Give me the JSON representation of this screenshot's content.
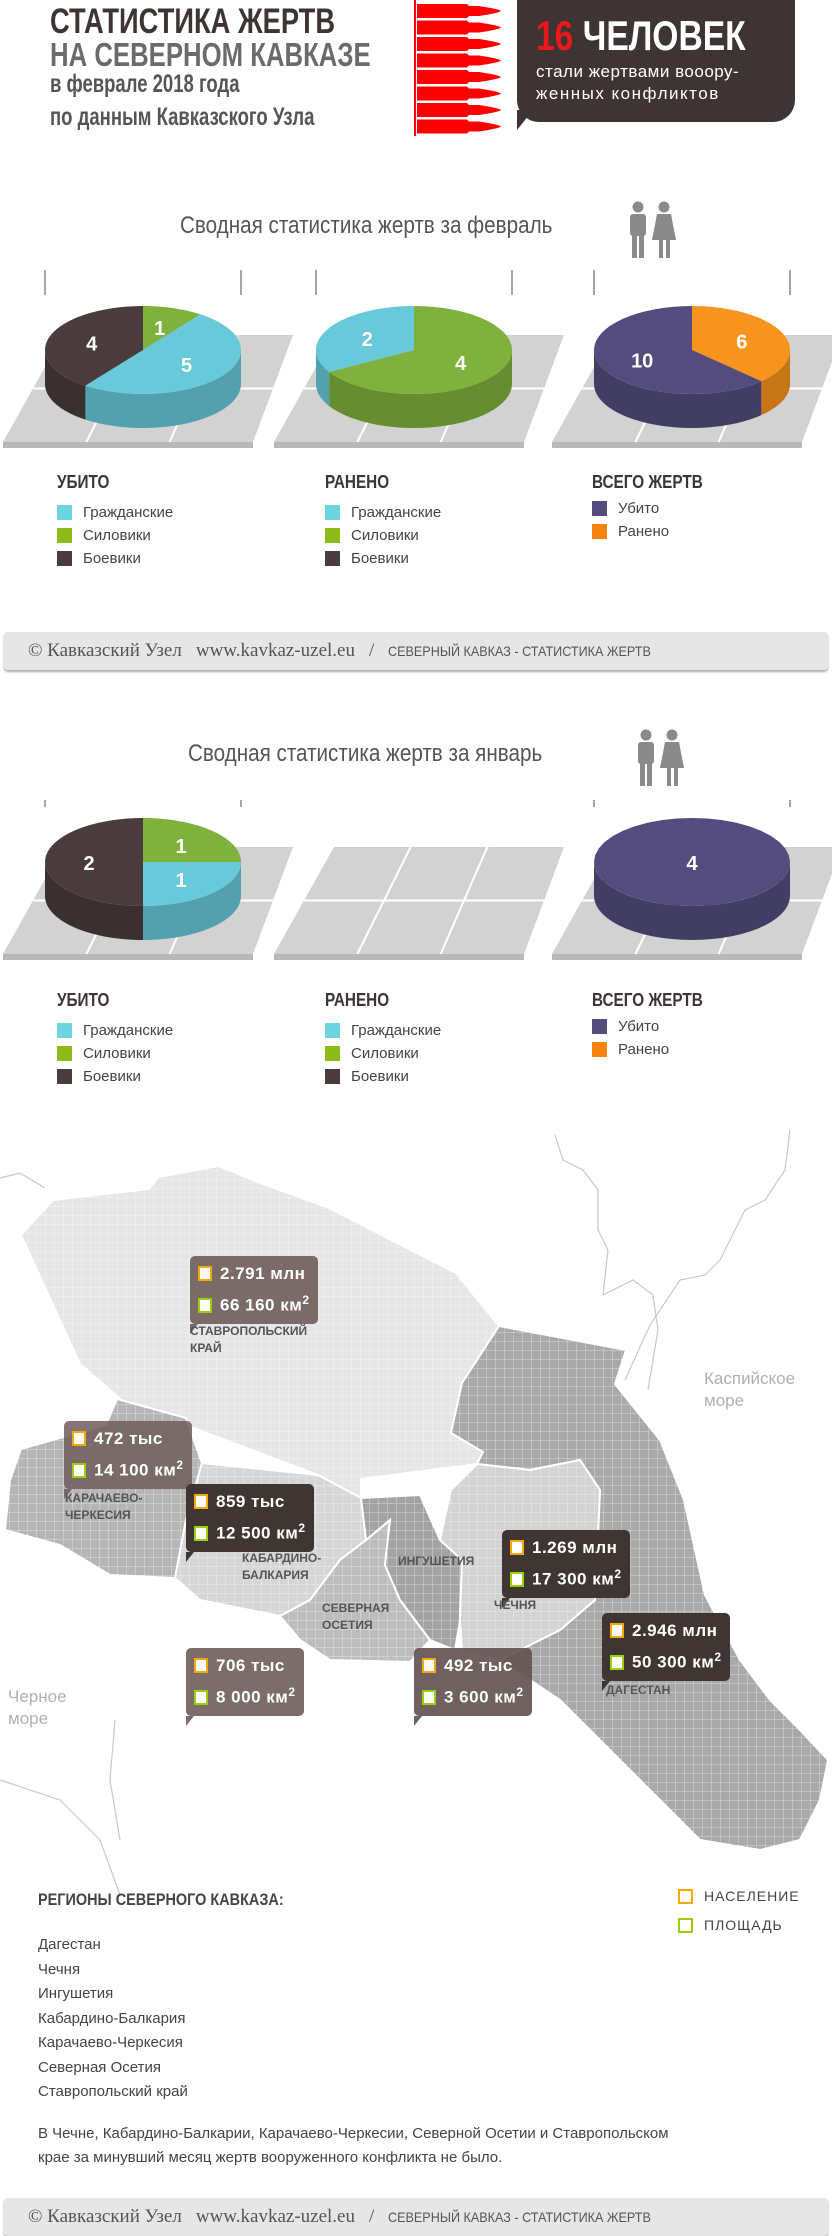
{
  "header": {
    "title_line1": "СТАТИСТИКА ЖЕРТВ",
    "title_line2": "НА СЕВЕРНОМ КАВКАЗЕ",
    "title_line3": "в феврале 2018 года",
    "title_line4": "по данным Кавказского Узла",
    "total_number": "16",
    "total_word": "ЧЕЛОВЕК",
    "total_sub1": "стали жертвами вооору-",
    "total_sub2": "женных  конфликтов",
    "bullet_color": "#ff0000"
  },
  "february": {
    "title": "Сводная статистика жертв за февраль"
  },
  "january": {
    "title": "Сводная статистика жертв за январь"
  },
  "legends": {
    "killed": "УБИТО",
    "wounded": "РАНЕНО",
    "total": "ВСЕГО ЖЕРТВ",
    "civilians": "Гражданские",
    "security": "Силовики",
    "militants": "Боевики",
    "killed_item": "Убито",
    "wounded_item": "Ранено"
  },
  "colors": {
    "civilians": "#68c9da",
    "security": "#7fb13c",
    "militants": "#4a3c3c",
    "killed": "#534c7c",
    "wounded": "#f7941d"
  },
  "chart_data": [
    {
      "type": "pie",
      "month": "февраль",
      "title": "УБИТО",
      "total": "10",
      "categories": [
        "Силовики",
        "Гражданские",
        "Боевики"
      ],
      "values": [
        1,
        5,
        4
      ]
    },
    {
      "type": "pie",
      "month": "февраль",
      "title": "РАНЕНО",
      "total": "6",
      "categories": [
        "Силовики",
        "Гражданские"
      ],
      "values": [
        4,
        2
      ]
    },
    {
      "type": "pie",
      "month": "февраль",
      "title": "ВСЕГО ЖЕРТВ",
      "total": "16",
      "categories": [
        "Ранено",
        "Убито"
      ],
      "values": [
        6,
        10
      ]
    },
    {
      "type": "pie",
      "month": "январь",
      "title": "УБИТО",
      "total": "4",
      "categories": [
        "Силовики",
        "Гражданские",
        "Боевики"
      ],
      "values": [
        1,
        1,
        2
      ]
    },
    {
      "type": "pie",
      "month": "январь",
      "title": "РАНЕНО",
      "total": "",
      "categories": [],
      "values": []
    },
    {
      "type": "pie",
      "month": "январь",
      "title": "ВСЕГО ЖЕРТВ",
      "total": "4",
      "categories": [
        "Убито"
      ],
      "values": [
        4
      ]
    }
  ],
  "footer": {
    "copyright": "© Кавказский Узел",
    "url": "www.kavkaz-uzel.eu",
    "slash": "/",
    "caption": "СЕВЕРНЫЙ КАВКАЗ - СТАТИСТИКА ЖЕРТВ"
  },
  "map": {
    "caspian": "Каспийское море",
    "black_sea": "Черное море",
    "km2": "км",
    "sup": "2",
    "regions": [
      {
        "name": "СТАВРОПОЛЬСКИЙ КРАЙ",
        "population": "2.791 млн",
        "area": "66 160"
      },
      {
        "name": "КАРАЧАЕВО-ЧЕРКЕСИЯ",
        "population": "472 тыс",
        "area": "14 100"
      },
      {
        "name": "КАБАРДИНО-БАЛКАРИЯ",
        "population": "859 тыс",
        "area": "12 500"
      },
      {
        "name": "СЕВЕРНАЯ ОСЕТИЯ",
        "population": "706 тыс",
        "area": "8 000"
      },
      {
        "name": "ИНГУШЕТИЯ",
        "population": "492 тыс",
        "area": "3 600"
      },
      {
        "name": "ЧЕЧНЯ",
        "population": "1.269 млн",
        "area": "17 300"
      },
      {
        "name": "ДАГЕСТАН",
        "population": "2.946 млн",
        "area": "50 300"
      }
    ]
  },
  "regions_section": {
    "title": "РЕГИОНЫ СЕВЕРНОГО КАВКАЗА:",
    "population_label": "НАСЕЛЕНИЕ",
    "area_label": "ПЛОЩАДЬ",
    "items": [
      "Дагестан",
      "Чечня",
      "Ингушетия",
      "Кабардино-Балкария",
      "Карачаево-Черкесия",
      "Северная Осетия",
      "Ставропольский край"
    ],
    "note_line1": "В Чечне, Кабардино-Балкарии, Карачаево-Черкесии, Северной Осетии и Ставропольском",
    "note_line2": "крае  за минувший месяц жертв вооруженного конфликта не было."
  }
}
